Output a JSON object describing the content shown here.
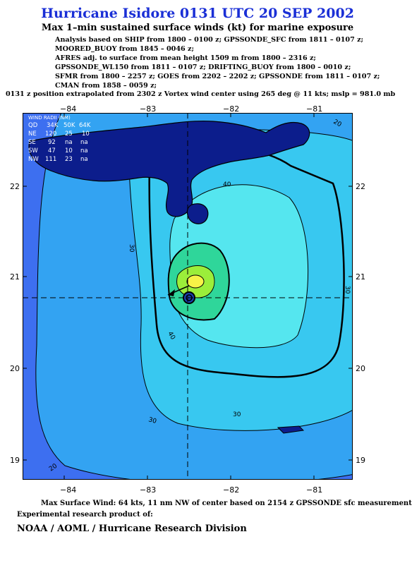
{
  "title": "Hurricane Isidore 0131 UTC 20 SEP 2002",
  "subtitle": "Max 1–min sustained surface winds (kt) for marine exposure",
  "analysis_lines": [
    "Analysis based on  SHIP from 1800 – 0100 z;  GPSSONDE_SFC from 1811 – 0107 z;",
    "MOORED_BUOY from 1845 – 0046 z;",
    "AFRES adj. to surface from mean height 1509 m from 1800 – 2316 z;",
    "GPSSONDE_WL150 from 1811 – 0107 z;  DRIFTING_BUOY from 1800 – 0010 z;",
    "SFMR from 1800 – 2257 z;  GOES from 2202 – 2202 z;  GPSSONDE from 1811 – 0107 z;",
    "CMAN from 1858 – 0059 z;"
  ],
  "position_line": "0131 z position extrapolated from 2302 z Vortex wind center using 265 deg @ 11 kts; mslp = 981.0 mb",
  "axes": {
    "lon_labels": [
      "−84",
      "−83",
      "−82",
      "−81"
    ],
    "lat_labels": [
      "22",
      "21",
      "20",
      "19"
    ]
  },
  "wind_radii": {
    "title": "WIND RADII (NM)",
    "header": [
      "QD",
      "34K",
      "50K",
      "64K"
    ],
    "rows": [
      [
        "NE",
        "120",
        "25",
        "10"
      ],
      [
        "SE",
        "92",
        "na",
        "na"
      ],
      [
        "SW",
        "47",
        "10",
        "na"
      ],
      [
        "NW",
        "111",
        "23",
        "na"
      ]
    ]
  },
  "contour_labels": [
    "20",
    "20",
    "30",
    "30",
    "30",
    "30",
    "40",
    "40"
  ],
  "colors": {
    "title": "#1a2fd6",
    "ocean_outer": "#3d6ff0",
    "band_20": "#33a3f2",
    "band_30": "#38c8f0",
    "band_40": "#55e6ef",
    "band_50": "#2fd69a",
    "band_60": "#9bee3a",
    "core": "#f7f247",
    "land": "#0c1d8c"
  },
  "footer": {
    "max_wind": "Max Surface Wind: 64 kts, 11 nm NW of center based on 2154 z GPSSONDE sfc measurement",
    "experimental": "Experimental research product of:",
    "org": "NOAA / AOML / Hurricane Research Division"
  }
}
